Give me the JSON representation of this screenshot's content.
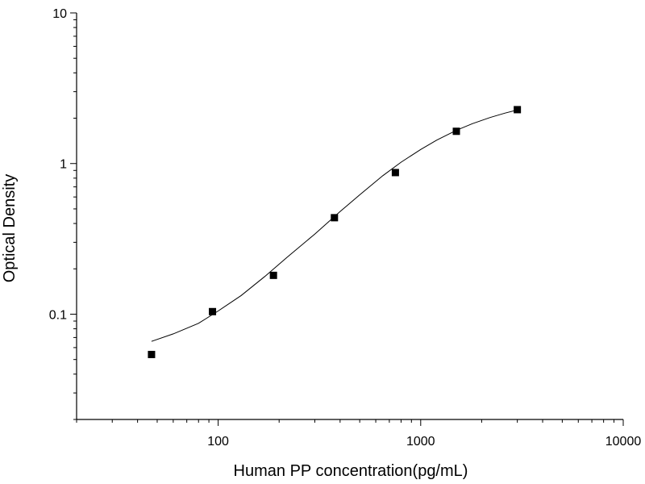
{
  "chart_data": {
    "type": "scatter",
    "title": "",
    "xlabel": "Human PP concentration(pg/mL)",
    "ylabel": "Optical Density",
    "xscale": "log",
    "yscale": "log",
    "xlim": [
      20,
      10000
    ],
    "ylim": [
      0.02,
      10
    ],
    "x_ticks": [
      {
        "value": 100,
        "label": "100"
      },
      {
        "value": 1000,
        "label": "1000"
      },
      {
        "value": 10000,
        "label": "10000"
      }
    ],
    "y_ticks": [
      {
        "value": 0.1,
        "label": "0.1"
      },
      {
        "value": 1,
        "label": "1"
      },
      {
        "value": 10,
        "label": "10"
      }
    ],
    "grid": false,
    "legend": "none",
    "series": [
      {
        "marker": "square",
        "color": "#000000",
        "x": [
          46.88,
          93.75,
          187.5,
          375,
          750,
          1500,
          3000
        ],
        "y": [
          0.054,
          0.104,
          0.181,
          0.437,
          0.871,
          1.637,
          2.279
        ]
      }
    ],
    "fit_curve": {
      "color": "#000000",
      "x": [
        46.88,
        60,
        80,
        100,
        130,
        170,
        220,
        300,
        400,
        500,
        650,
        800,
        1000,
        1200,
        1500,
        1800,
        2200,
        2600,
        3000
      ],
      "y": [
        0.066,
        0.074,
        0.087,
        0.105,
        0.133,
        0.178,
        0.24,
        0.34,
        0.48,
        0.62,
        0.83,
        1.02,
        1.24,
        1.43,
        1.66,
        1.84,
        2.02,
        2.16,
        2.27
      ]
    }
  }
}
